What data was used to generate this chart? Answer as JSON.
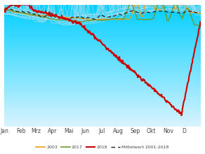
{
  "title": "",
  "xlabel": "",
  "ylabel": "",
  "months": [
    "Jan",
    "Feb",
    "Mrz",
    "Apr",
    "Mai",
    "Jun",
    "Jul",
    "Aug",
    "Sep",
    "Okt",
    "Nov",
    "D"
  ],
  "month_positions": [
    0,
    31,
    59,
    90,
    120,
    151,
    181,
    212,
    243,
    273,
    304,
    334
  ],
  "background_top": "#00cfff",
  "background_bottom": "#d8f4ff",
  "line_color_2018": "#cc0000",
  "line_color_2003": "#e8a020",
  "line_color_2017": "#6a9a30",
  "line_color_gray": "#aaddee",
  "line_color_mean": "#222222",
  "ylim": [
    0,
    1
  ],
  "xlim": [
    0,
    365
  ]
}
